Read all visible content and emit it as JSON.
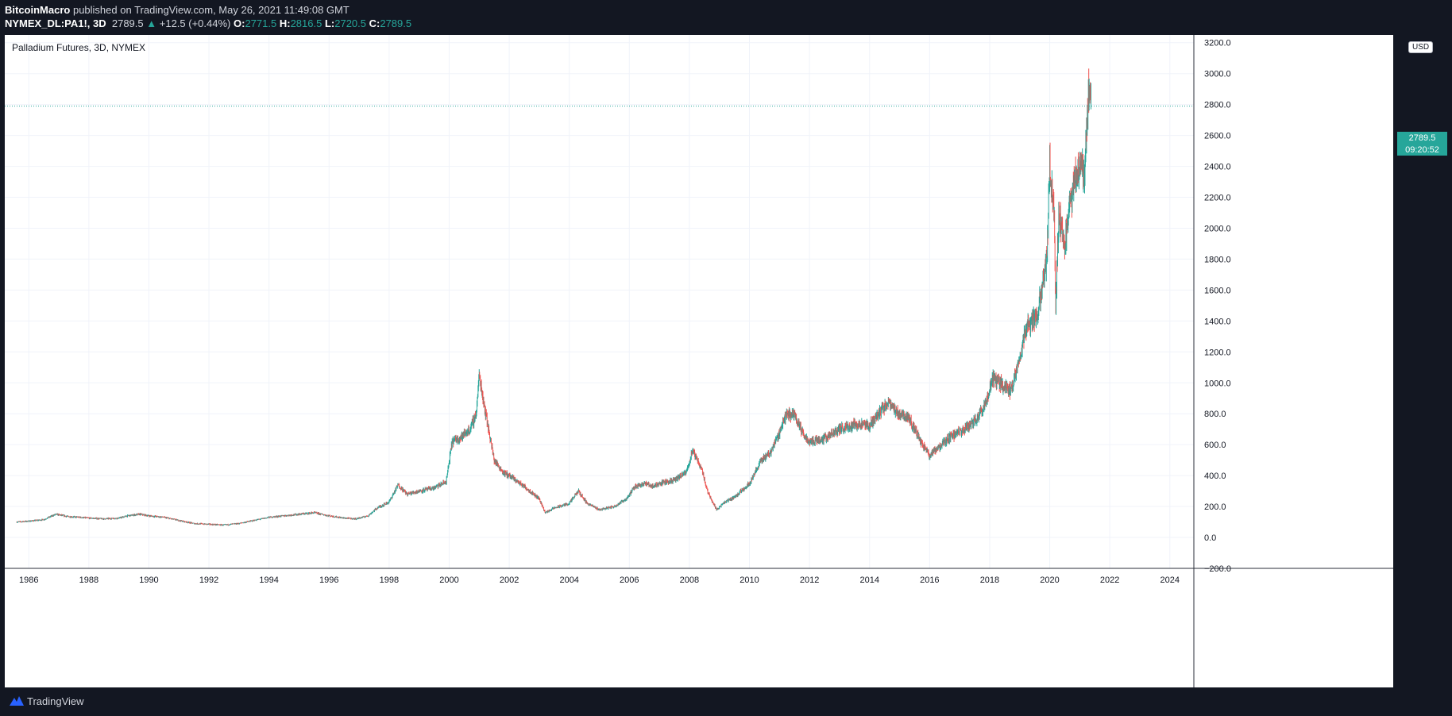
{
  "header": {
    "author": "BitcoinMacro",
    "published_text": "published on TradingView.com, May 26, 2021 11:49:08 GMT",
    "symbol": "NYMEX_DL:PA1!, 3D",
    "last": "2789.5",
    "change_arrow": "▲",
    "change": "+12.5 (+0.44%)",
    "o_label": "O:",
    "o_value": "2771.5",
    "h_label": "H:",
    "h_value": "2816.5",
    "l_label": "L:",
    "l_value": "2720.5",
    "c_label": "C:",
    "c_value": "2789.5"
  },
  "footer": {
    "brand": "TradingView",
    "logo_icon": "tradingview-logo-icon"
  },
  "price_tag": {
    "price": "2789.5",
    "countdown": "09:20:52"
  },
  "colors": {
    "up": "#26a69a",
    "down": "#ef5350",
    "grid": "#f0f3fa",
    "axis_text": "#131722",
    "background": "#131722"
  },
  "chart_data": {
    "type": "candlestick",
    "title": "Palladium Futures, 3D, NYMEX",
    "currency": "USD",
    "last_price": 2789.5,
    "ylim": [
      -200,
      3250
    ],
    "xlim": [
      1985.2,
      2024.8
    ],
    "y_ticks": [
      "3200.0",
      "3000.0",
      "2800.0",
      "2600.0",
      "2400.0",
      "2200.0",
      "2000.0",
      "1800.0",
      "1600.0",
      "1400.0",
      "1200.0",
      "1000.0",
      "800.0",
      "600.0",
      "400.0",
      "200.0",
      "0.0",
      "−200.0"
    ],
    "x_ticks": [
      "1986",
      "1988",
      "1990",
      "1992",
      "1994",
      "1996",
      "1998",
      "2000",
      "2002",
      "2004",
      "2006",
      "2008",
      "2010",
      "2012",
      "2014",
      "2016",
      "2018",
      "2020",
      "2022",
      "2024"
    ],
    "series": [
      {
        "x": [
          1985.6,
          1986.0,
          1986.5,
          1986.9,
          1987.3,
          1987.7,
          1988.0,
          1988.5,
          1989.0,
          1989.3,
          1989.7,
          1990.0,
          1990.5,
          1991.0,
          1991.5,
          1992.0,
          1992.5,
          1993.0,
          1993.5,
          1994.0,
          1994.5,
          1995.0,
          1995.5,
          1996.0,
          1996.5,
          1996.9,
          1997.3,
          1997.6,
          1998.0,
          1998.3,
          1998.6,
          1999.0,
          1999.5,
          1999.9,
          2000.1,
          2000.4,
          2000.7,
          2000.9,
          2001.0,
          2001.2,
          2001.5,
          2001.8,
          2002.0,
          2002.5,
          2003.0,
          2003.2,
          2003.5,
          2004.0,
          2004.3,
          2004.6,
          2005.0,
          2005.5,
          2005.9,
          2006.2,
          2006.5,
          2006.8,
          2007.0,
          2007.5,
          2007.9,
          2008.1,
          2008.4,
          2008.6,
          2008.9,
          2009.2,
          2009.5,
          2010.0,
          2010.4,
          2010.7,
          2011.0,
          2011.2,
          2011.5,
          2011.8,
          2012.0,
          2012.5,
          2013.0,
          2013.5,
          2014.0,
          2014.3,
          2014.6,
          2014.9,
          2015.3,
          2015.7,
          2016.0,
          2016.3,
          2016.7,
          2017.0,
          2017.5,
          2017.9,
          2018.1,
          2018.3,
          2018.7,
          2019.0,
          2019.2,
          2019.6,
          2019.9,
          2020.0,
          2020.15,
          2020.2,
          2020.3,
          2020.5,
          2020.8,
          2021.0,
          2021.15,
          2021.25,
          2021.3,
          2021.38
        ],
        "y": [
          100,
          105,
          115,
          150,
          135,
          130,
          125,
          120,
          125,
          140,
          150,
          140,
          130,
          110,
          90,
          85,
          80,
          90,
          110,
          130,
          140,
          150,
          160,
          140,
          125,
          120,
          140,
          190,
          230,
          340,
          280,
          300,
          320,
          360,
          620,
          650,
          700,
          800,
          1050,
          820,
          500,
          420,
          400,
          330,
          250,
          160,
          190,
          220,
          300,
          220,
          180,
          200,
          250,
          330,
          350,
          330,
          350,
          370,
          420,
          560,
          450,
          300,
          180,
          230,
          260,
          350,
          500,
          550,
          680,
          790,
          800,
          660,
          620,
          640,
          700,
          730,
          720,
          800,
          870,
          810,
          780,
          620,
          530,
          580,
          650,
          680,
          750,
          880,
          1030,
          1000,
          950,
          1150,
          1350,
          1450,
          1800,
          2400,
          2100,
          1500,
          2100,
          1900,
          2300,
          2400,
          2350,
          2700,
          2900,
          2789.5
        ]
      }
    ]
  }
}
